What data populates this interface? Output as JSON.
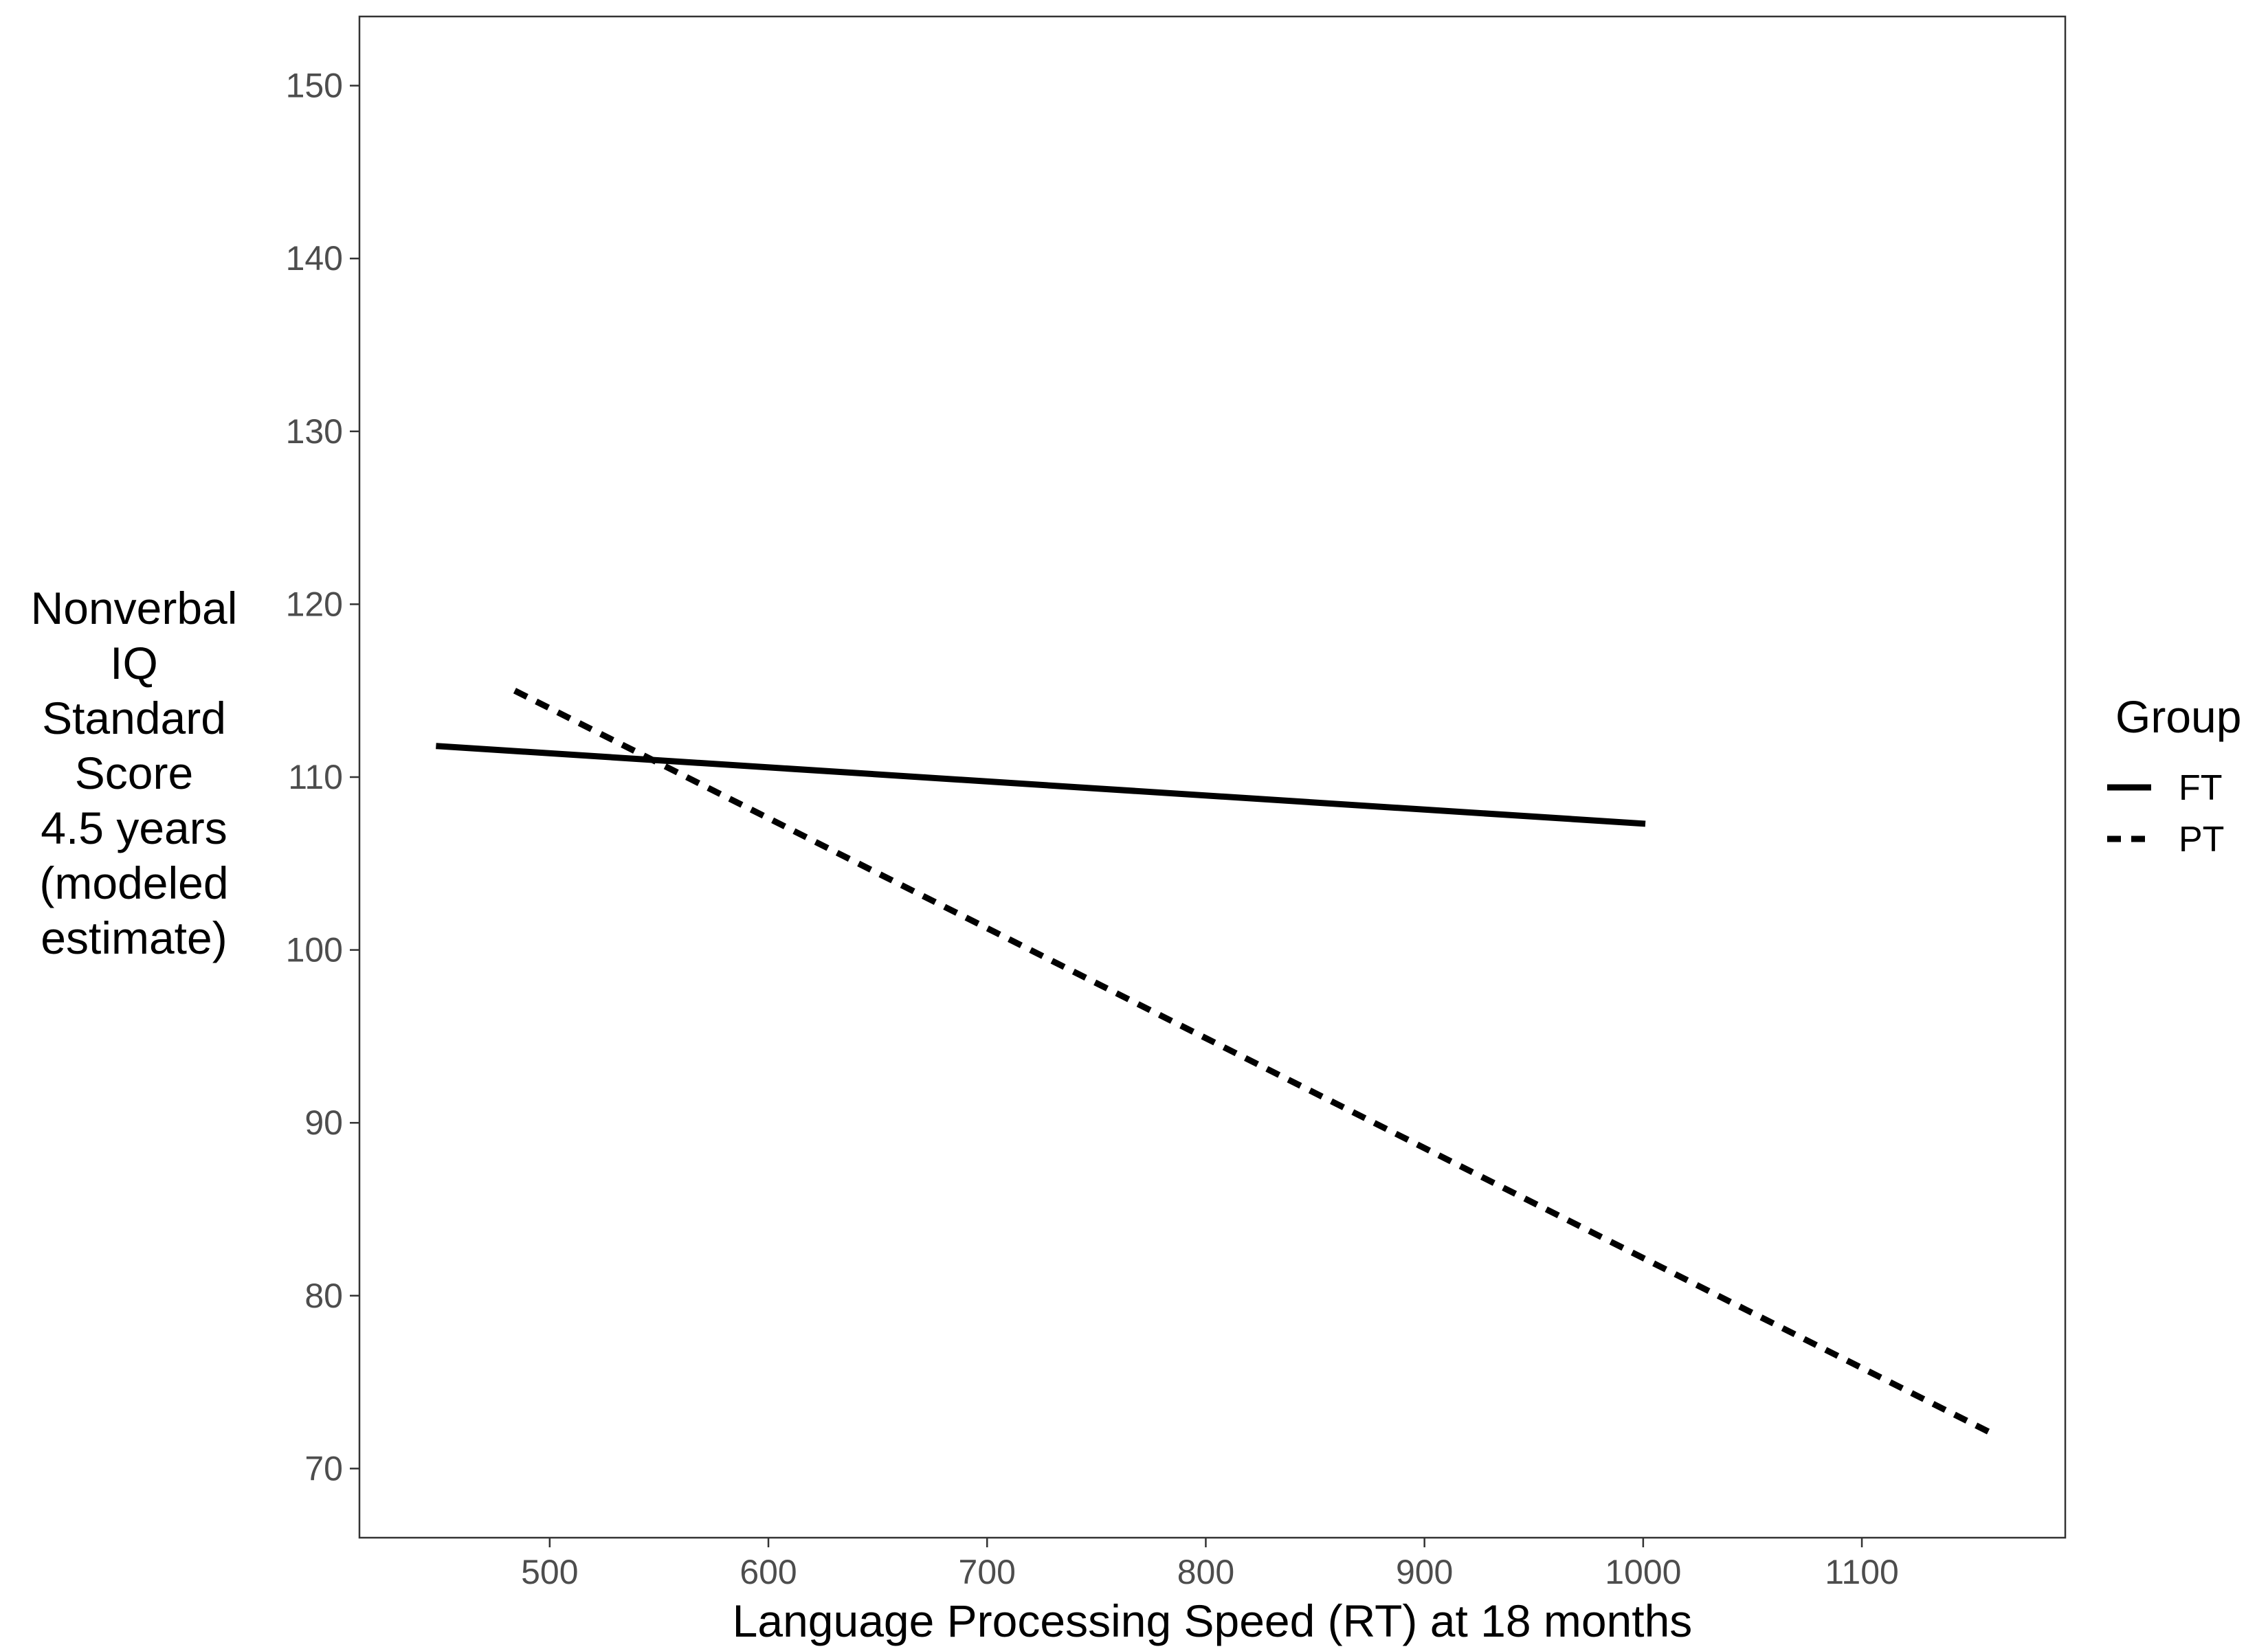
{
  "chart_data": {
    "type": "line",
    "xlabel": "Language Processing Speed (RT) at 18 months",
    "ylabel_lines": [
      "Nonverbal",
      "IQ",
      "Standard",
      "Score",
      "4.5 years",
      "(modeled",
      "estimate)"
    ],
    "xlim": [
      413,
      1193
    ],
    "ylim": [
      66,
      154
    ],
    "x_ticks": [
      500,
      600,
      700,
      800,
      900,
      1000,
      1100
    ],
    "y_ticks": [
      70,
      80,
      90,
      100,
      110,
      120,
      130,
      140,
      150
    ],
    "grid": false,
    "legend": {
      "title": "Group",
      "position": "right"
    },
    "series": [
      {
        "name": "FT",
        "linestyle": "solid",
        "color": "#000000",
        "points": [
          [
            448,
            111.8
          ],
          [
            1001,
            107.3
          ]
        ]
      },
      {
        "name": "PT",
        "linestyle": "dashed",
        "color": "#000000",
        "points": [
          [
            484,
            115.0
          ],
          [
            1160,
            72.0
          ]
        ]
      }
    ]
  }
}
